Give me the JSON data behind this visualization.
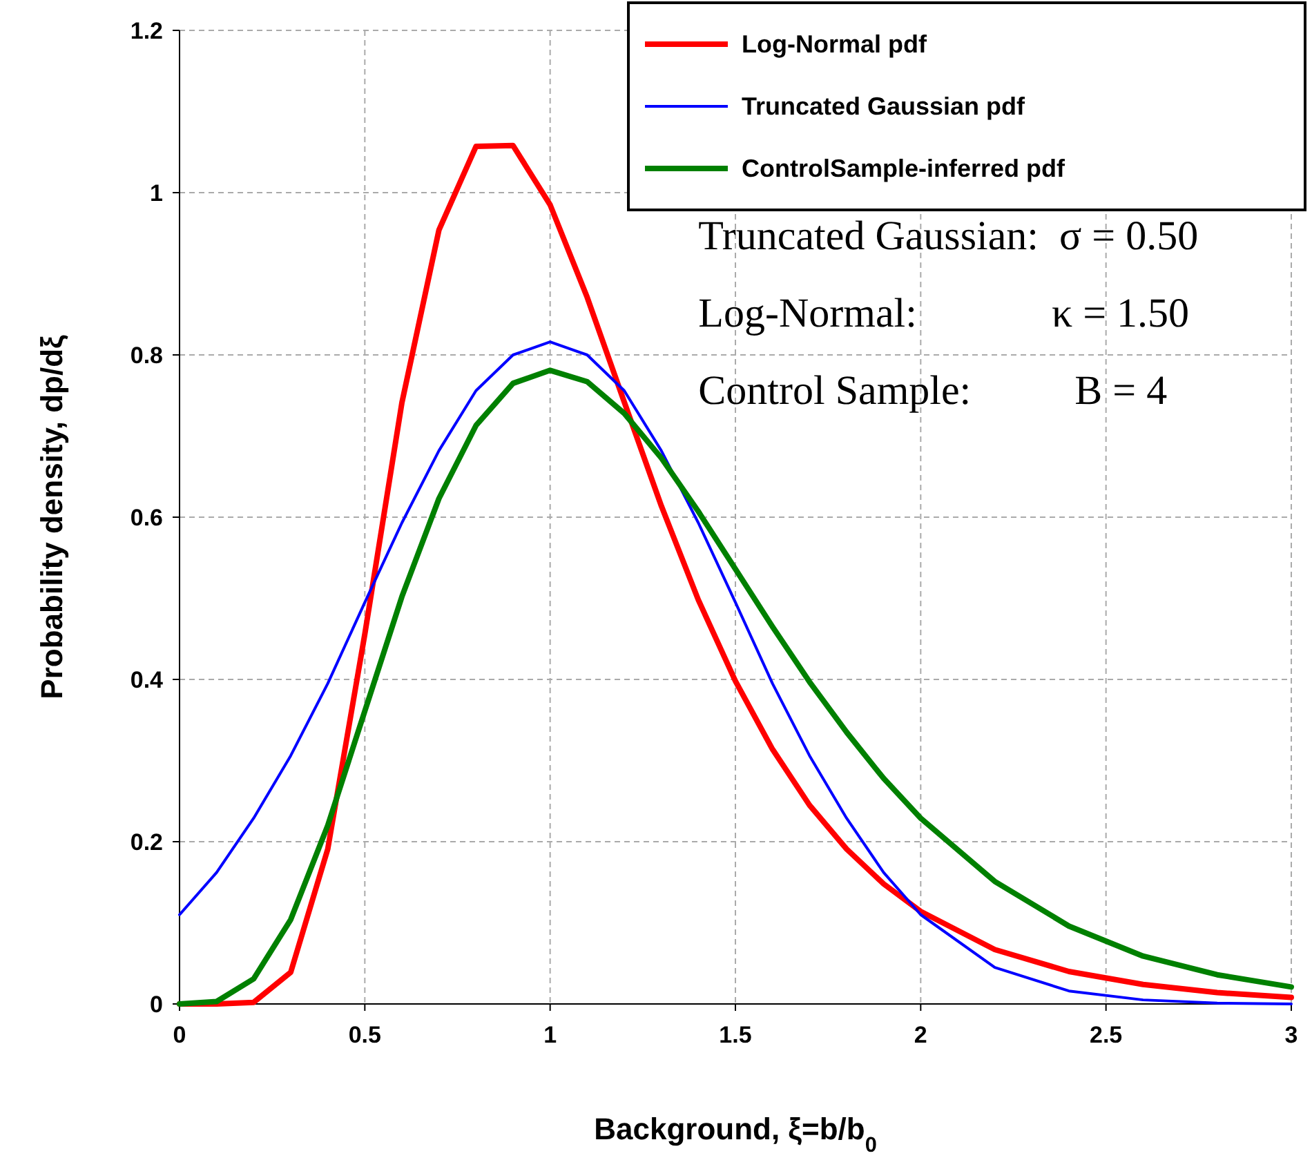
{
  "chart_data": {
    "type": "line",
    "xlabel": "Background, ξ=b/b$_{0}$",
    "ylabel": "Probability density, dp/dξ",
    "x": [
      0,
      0.1,
      0.2,
      0.3,
      0.4,
      0.5,
      0.6,
      0.7,
      0.8,
      0.9,
      1.0,
      1.1,
      1.2,
      1.3,
      1.4,
      1.5,
      1.6,
      1.7,
      1.8,
      1.9,
      2.0,
      2.2,
      2.4,
      2.6,
      2.8,
      3.0
    ],
    "series": [
      {
        "name": "Log-Normal pdf",
        "color": "#ff0000",
        "values": [
          0,
          0,
          0.002,
          0.039,
          0.191,
          0.456,
          0.741,
          0.954,
          1.057,
          1.058,
          0.985,
          0.871,
          0.742,
          0.614,
          0.498,
          0.398,
          0.314,
          0.245,
          0.191,
          0.148,
          0.114,
          0.067,
          0.04,
          0.024,
          0.014,
          0.008
        ]
      },
      {
        "name": "Truncated Gaussian pdf",
        "color": "#0000ff",
        "values": [
          0.11,
          0.162,
          0.229,
          0.306,
          0.395,
          0.495,
          0.593,
          0.682,
          0.756,
          0.8,
          0.816,
          0.8,
          0.756,
          0.682,
          0.593,
          0.495,
          0.395,
          0.306,
          0.229,
          0.162,
          0.11,
          0.045,
          0.016,
          0.005,
          0.001,
          0
        ]
      },
      {
        "name": "ControlSample-inferred pdf",
        "color": "#008000",
        "values": [
          0,
          0.003,
          0.031,
          0.104,
          0.22,
          0.361,
          0.502,
          0.623,
          0.713,
          0.765,
          0.781,
          0.767,
          0.728,
          0.673,
          0.607,
          0.536,
          0.465,
          0.397,
          0.335,
          0.278,
          0.229,
          0.151,
          0.096,
          0.059,
          0.036,
          0.021
        ]
      }
    ],
    "xlim": [
      0,
      3
    ],
    "xticks": [
      0,
      0.5,
      1,
      1.5,
      2,
      2.5,
      3
    ],
    "ylim": [
      0,
      1.2
    ],
    "yticks": [
      0,
      0.2,
      0.4,
      0.6,
      0.8,
      1,
      1.2
    ],
    "grid": true,
    "legend": "top right",
    "marker": "none",
    "line_style": "solid",
    "annotations": [
      "Truncated Gaussian:  σ = 0.50",
      "Log-Normal:             κ = 1.50",
      "Control Sample:          B = 4"
    ]
  }
}
